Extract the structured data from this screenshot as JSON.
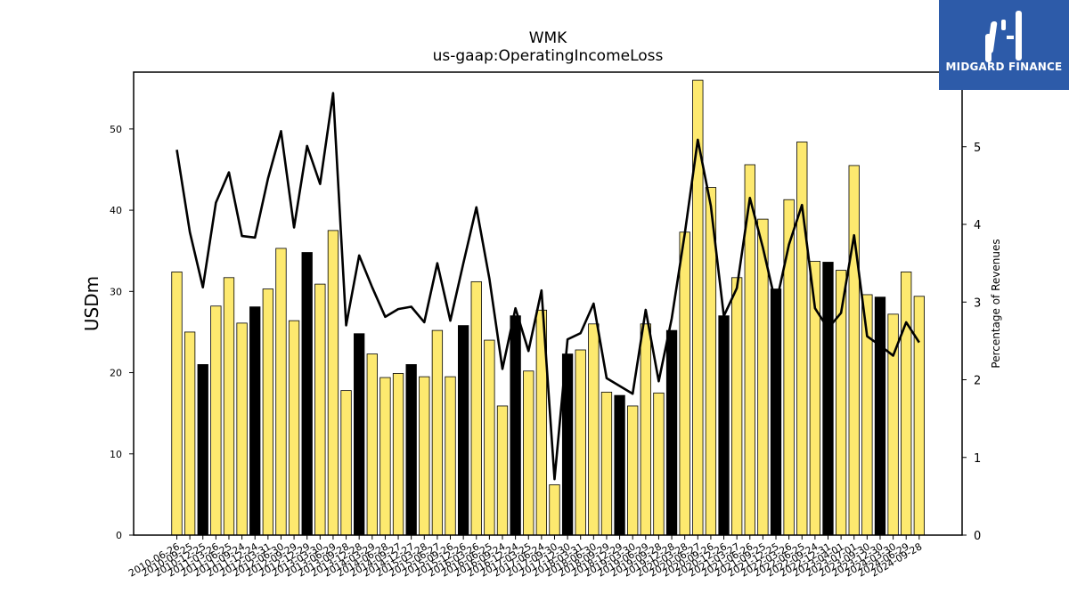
{
  "brand": {
    "name": "MIDGARD FINANCE"
  },
  "colors": {
    "bar_fill": "#fde96f",
    "bar_highlight": "#000000",
    "line": "#000000",
    "logo_bg": "#2d5ba9"
  },
  "chart_data": {
    "type": "bar",
    "title": "WMK",
    "subtitle": "us-gaap:OperatingIncomeLoss",
    "ylabel": "USDm",
    "y2label": "Percentage of Revenues",
    "ylim": [
      0,
      57
    ],
    "y2lim": [
      0,
      5.96
    ],
    "yticks": [
      "0",
      "10",
      "20",
      "30",
      "40",
      "50"
    ],
    "y2ticks": [
      "0",
      "1",
      "2",
      "3",
      "4",
      "5"
    ],
    "grid": false,
    "categories": [
      "2010-06-26",
      "2010-09-25",
      "2010-12-25",
      "2011-03-26",
      "2011-06-25",
      "2011-09-24",
      "2011-12-24",
      "2012-03-31",
      "2012-06-30",
      "2012-09-29",
      "2012-12-29",
      "2013-03-30",
      "2013-06-29",
      "2013-09-28",
      "2013-12-28",
      "2014-03-29",
      "2014-06-28",
      "2014-09-27",
      "2014-12-27",
      "2015-03-28",
      "2015-06-27",
      "2015-09-26",
      "2015-12-26",
      "2016-03-26",
      "2016-06-25",
      "2016-09-24",
      "2016-12-24",
      "2017-03-25",
      "2017-06-24",
      "2017-09-30",
      "2017-12-30",
      "2018-03-31",
      "2018-06-30",
      "2018-09-29",
      "2018-12-29",
      "2019-03-30",
      "2019-06-29",
      "2019-09-28",
      "2019-12-28",
      "2020-03-28",
      "2020-06-27",
      "2020-09-26",
      "2020-12-26",
      "2021-03-27",
      "2021-06-26",
      "2021-09-25",
      "2021-12-25",
      "2022-03-26",
      "2022-06-25",
      "2022-09-24",
      "2022-12-31",
      "2023-04-01",
      "2023-07-01",
      "2023-09-30",
      "2023-12-30",
      "2024-03-30",
      "2024-06-29",
      "2024-09-28"
    ],
    "xtick_labels": [
      "2010-06-26",
      "2010-09-25",
      "2010-12-25",
      "2011-03-26",
      "2011-06-25",
      "2011-09-24",
      "2011-12-24",
      "2012-03-31",
      "2012-06-30",
      "2012-09-29",
      "2012-12-29",
      "2013-03-30",
      "2013-06-29",
      "2013-09-28",
      "2013-12-28",
      "2014-03-29",
      "2014-06-28",
      "2014-09-27",
      "2014-12-27",
      "2015-03-28",
      "2015-06-27",
      "2015-09-26",
      "2015-12-26",
      "2016-03-26",
      "2016-06-25",
      "2016-09-24",
      "2016-12-24",
      "2017-03-25",
      "2017-06-24",
      "2017-09-30",
      "2017-12-30",
      "2018-03-31",
      "2018-06-30",
      "2018-09-29",
      "2018-12-29",
      "2019-03-30",
      "2019-06-29",
      "2019-09-28",
      "2019-12-28",
      "2020-03-28",
      "2020-06-27",
      "2020-09-26",
      "2020-12-26",
      "2021-03-27",
      "2021-06-26",
      "2021-09-25",
      "2021-12-25",
      "2022-03-26",
      "2022-06-25",
      "2022-09-24",
      "2022-12-31",
      "2023-04-01",
      "2023-07-01",
      "2023-09-30",
      "2023-12-30",
      "2024-03-30",
      "2024-06-29",
      "2024-09-28"
    ],
    "series": [
      {
        "type": "bar",
        "axis": "left",
        "values": [
          32.4,
          25.0,
          21.0,
          28.2,
          31.7,
          26.1,
          28.1,
          30.3,
          35.3,
          26.4,
          34.8,
          30.9,
          37.5,
          17.8,
          24.8,
          22.3,
          19.4,
          19.9,
          21.0,
          19.5,
          25.2,
          19.5,
          25.8,
          31.2,
          24.0,
          15.9,
          27.0,
          20.2,
          27.7,
          6.2,
          22.3,
          22.8,
          26.0,
          17.6,
          17.2,
          15.9,
          26.0,
          17.5,
          25.2,
          37.3,
          56.0,
          42.8,
          27.0,
          31.7,
          45.6,
          38.9,
          30.3,
          41.3,
          48.4,
          33.7,
          33.6,
          32.6,
          45.5,
          29.6,
          29.3,
          27.2,
          32.4,
          29.4
        ],
        "highlight": [
          false,
          false,
          true,
          false,
          false,
          false,
          true,
          false,
          false,
          false,
          true,
          false,
          false,
          false,
          true,
          false,
          false,
          false,
          true,
          false,
          false,
          false,
          true,
          false,
          false,
          false,
          true,
          false,
          false,
          false,
          true,
          false,
          false,
          false,
          true,
          false,
          false,
          false,
          true,
          false,
          false,
          false,
          true,
          false,
          false,
          false,
          true,
          false,
          false,
          false,
          true,
          false,
          false,
          false,
          true,
          false,
          false,
          false
        ]
      },
      {
        "type": "line",
        "axis": "right",
        "values": [
          4.96,
          3.9,
          3.19,
          4.28,
          4.67,
          3.85,
          3.83,
          4.59,
          5.2,
          3.96,
          5.01,
          4.52,
          5.69,
          2.7,
          3.6,
          3.19,
          2.81,
          2.91,
          2.94,
          2.74,
          3.5,
          2.76,
          3.5,
          4.22,
          3.3,
          2.14,
          2.92,
          2.37,
          3.15,
          0.72,
          2.52,
          2.6,
          2.98,
          2.02,
          1.92,
          1.82,
          2.9,
          1.98,
          2.79,
          3.88,
          5.09,
          4.24,
          2.82,
          3.18,
          4.34,
          3.7,
          2.97,
          3.74,
          4.25,
          2.92,
          2.66,
          2.86,
          3.86,
          2.56,
          2.44,
          2.31,
          2.74,
          2.48
        ]
      }
    ]
  }
}
